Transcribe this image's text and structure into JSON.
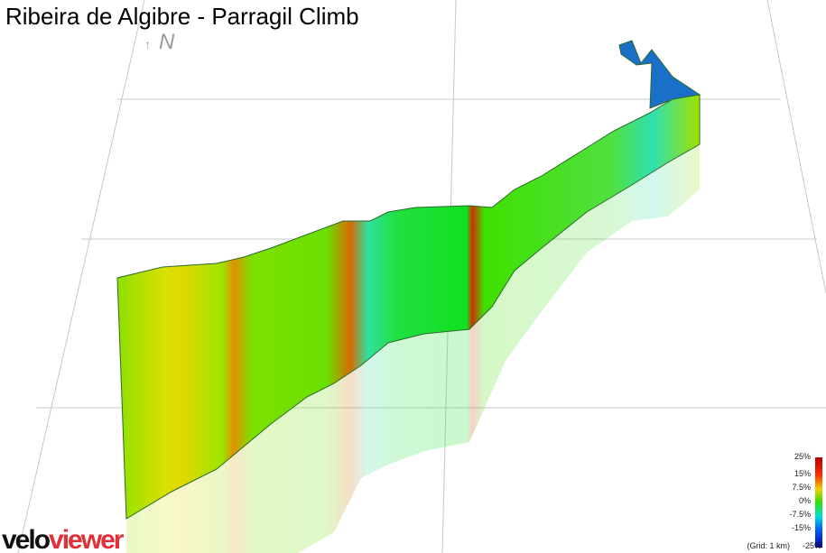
{
  "header": {
    "title": "Ribeira de Algibre - Parragil Climb",
    "north": "N"
  },
  "legend": {
    "labels": [
      "25%",
      "15%",
      "7.5%",
      "0%",
      "-7.5%",
      "-15%",
      "-25%"
    ],
    "grid_note": "(Grid: 1 km)"
  },
  "logo": {
    "first": "velo",
    "second": "viewer"
  }
}
